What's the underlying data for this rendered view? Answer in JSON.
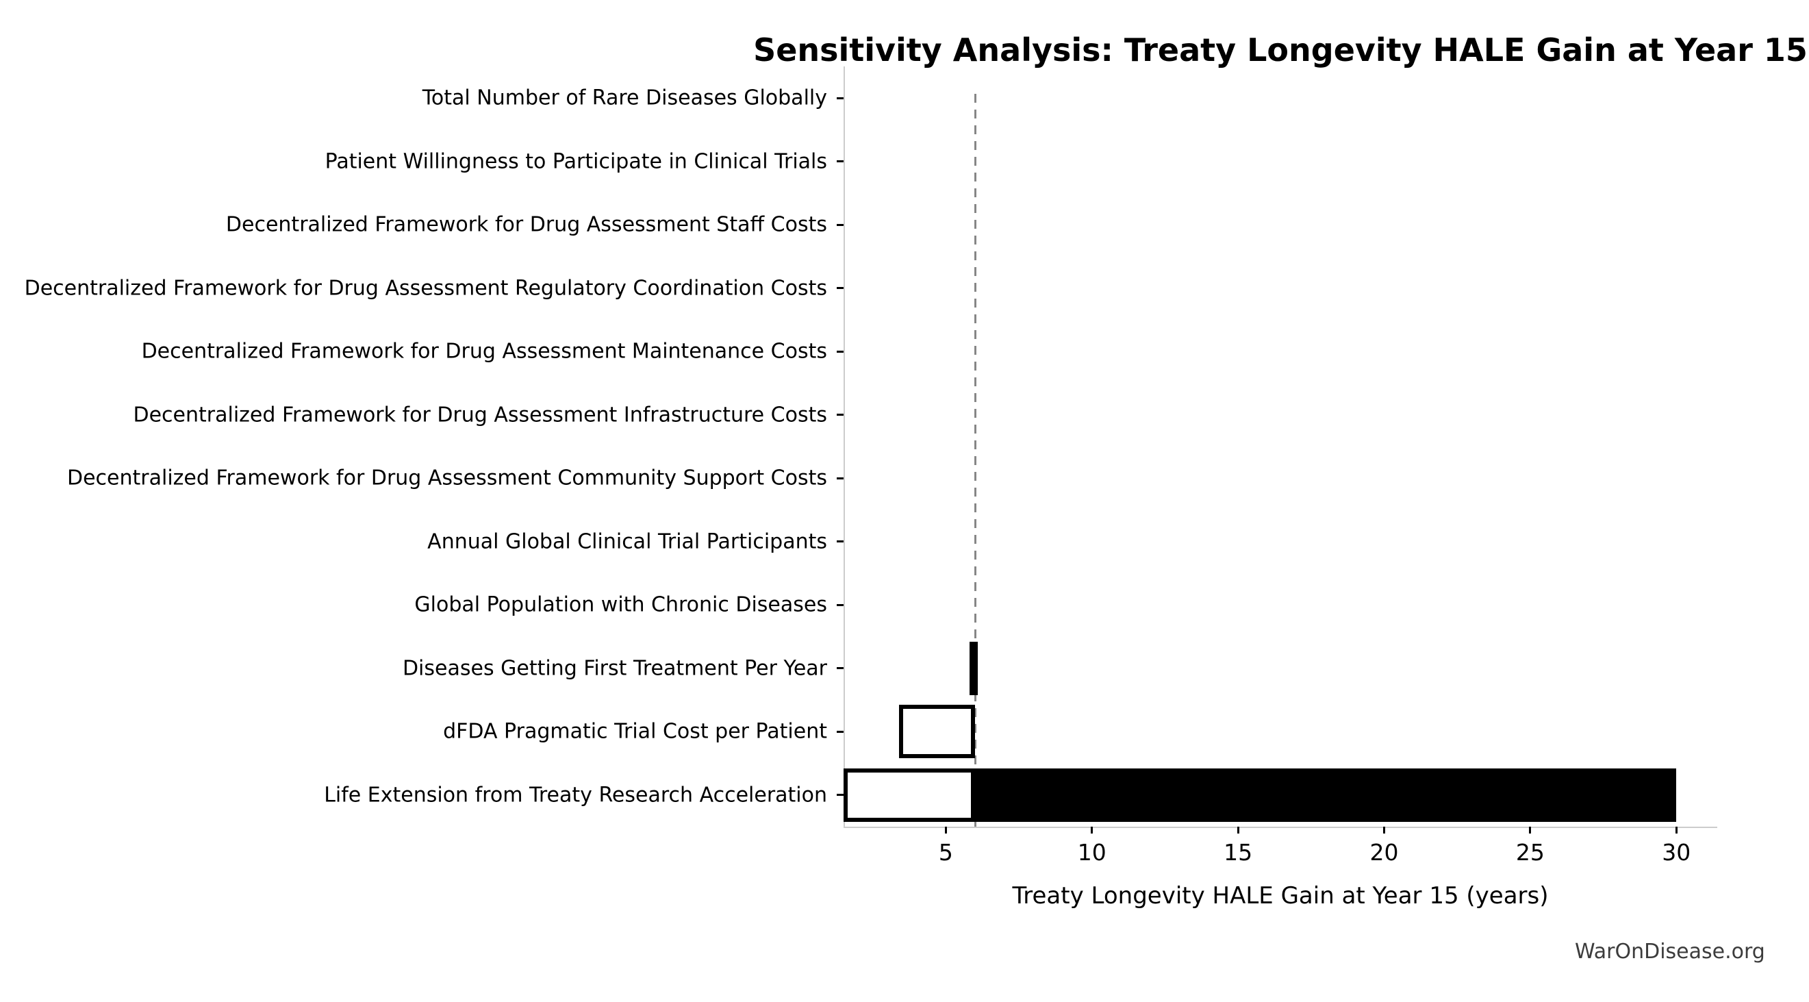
{
  "watermark": "WarOnDisease.org",
  "colors": {
    "bar_fill_high": "#000000",
    "bar_fill_low": "#ffffff",
    "bar_edge": "#000000",
    "baseline_line": "#868686",
    "spine": "#cccccc",
    "tick": "#000000",
    "text": "#000000",
    "watermark_text": "#3c3c3c",
    "background": "#ffffff"
  },
  "chart_data": {
    "type": "bar",
    "subtype": "tornado-sensitivity",
    "orientation": "horizontal",
    "title": "Sensitivity Analysis: Treaty Longevity HALE Gain at Year 15",
    "xlabel": "Treaty Longevity HALE Gain at Year 15 (years)",
    "ylabel": "",
    "baseline": 6.0,
    "xlim": [
      1.5,
      31.4
    ],
    "xticks": [
      5,
      10,
      15,
      20,
      25,
      30
    ],
    "grid": false,
    "legend": "none",
    "categories": [
      "Total Number of Rare Diseases Globally",
      "Patient Willingness to Participate in Clinical Trials",
      "Decentralized Framework for Drug Assessment Staff Costs",
      "Decentralized Framework for Drug Assessment Regulatory Coordination Costs",
      "Decentralized Framework for Drug Assessment Maintenance Costs",
      "Decentralized Framework for Drug Assessment Infrastructure Costs",
      "Decentralized Framework for Drug Assessment Community Support Costs",
      "Annual Global Clinical Trial Participants",
      "Global Population with Chronic Diseases",
      "Diseases Getting First Treatment Per Year",
      "dFDA Pragmatic Trial Cost per Patient",
      "Life Extension from Treaty Research Acceleration"
    ],
    "bars": [
      {
        "label": "Total Number of Rare Diseases Globally",
        "low": 6.0,
        "high": 6.0
      },
      {
        "label": "Patient Willingness to Participate in Clinical Trials",
        "low": 6.0,
        "high": 6.0
      },
      {
        "label": "Decentralized Framework for Drug Assessment Staff Costs",
        "low": 6.0,
        "high": 6.0
      },
      {
        "label": "Decentralized Framework for Drug Assessment Regulatory Coordination Costs",
        "low": 6.0,
        "high": 6.0
      },
      {
        "label": "Decentralized Framework for Drug Assessment Maintenance Costs",
        "low": 6.0,
        "high": 6.0
      },
      {
        "label": "Decentralized Framework for Drug Assessment Infrastructure Costs",
        "low": 6.0,
        "high": 6.0
      },
      {
        "label": "Decentralized Framework for Drug Assessment Community Support Costs",
        "low": 6.0,
        "high": 6.0
      },
      {
        "label": "Annual Global Clinical Trial Participants",
        "low": 6.0,
        "high": 6.0
      },
      {
        "label": "Global Population with Chronic Diseases",
        "low": 6.0,
        "high": 6.0
      },
      {
        "label": "Diseases Getting First Treatment Per Year",
        "low": 5.8,
        "high": 6.1
      },
      {
        "label": "dFDA Pragmatic Trial Cost per Patient",
        "low": 3.4,
        "high": 6.0
      },
      {
        "label": "Life Extension from Treaty Research Acceleration",
        "low": 1.5,
        "high": 30.0
      }
    ]
  }
}
